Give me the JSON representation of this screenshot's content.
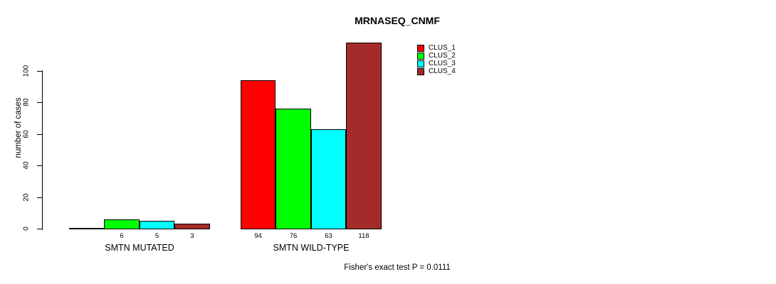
{
  "chart_data": {
    "type": "bar",
    "title": "MRNASEQ_CNMF",
    "ylabel": "number of cases",
    "xlabel": "",
    "ylim": [
      0,
      120
    ],
    "y_ticks": [
      0,
      20,
      40,
      60,
      80,
      100
    ],
    "grid": false,
    "legend_position": "top-right",
    "categories": [
      "SMTN MUTATED",
      "SMTN WILD-TYPE"
    ],
    "series": [
      {
        "name": "CLUS_1",
        "color": "#ff0000",
        "values": [
          0,
          94
        ]
      },
      {
        "name": "CLUS_2",
        "color": "#00ff00",
        "values": [
          6,
          76
        ]
      },
      {
        "name": "CLUS_3",
        "color": "#00ffff",
        "values": [
          5,
          63
        ]
      },
      {
        "name": "CLUS_4",
        "color": "#a52a2a",
        "values": [
          3,
          118
        ]
      }
    ],
    "bar_labels": [
      [
        "",
        "6",
        "5",
        "3"
      ],
      [
        "94",
        "76",
        "63",
        "118"
      ]
    ],
    "annotation": "Fisher's exact test P = 0.0111"
  },
  "colors": {
    "background": "#ffffff",
    "axis": "#000000",
    "text": "#000000"
  }
}
